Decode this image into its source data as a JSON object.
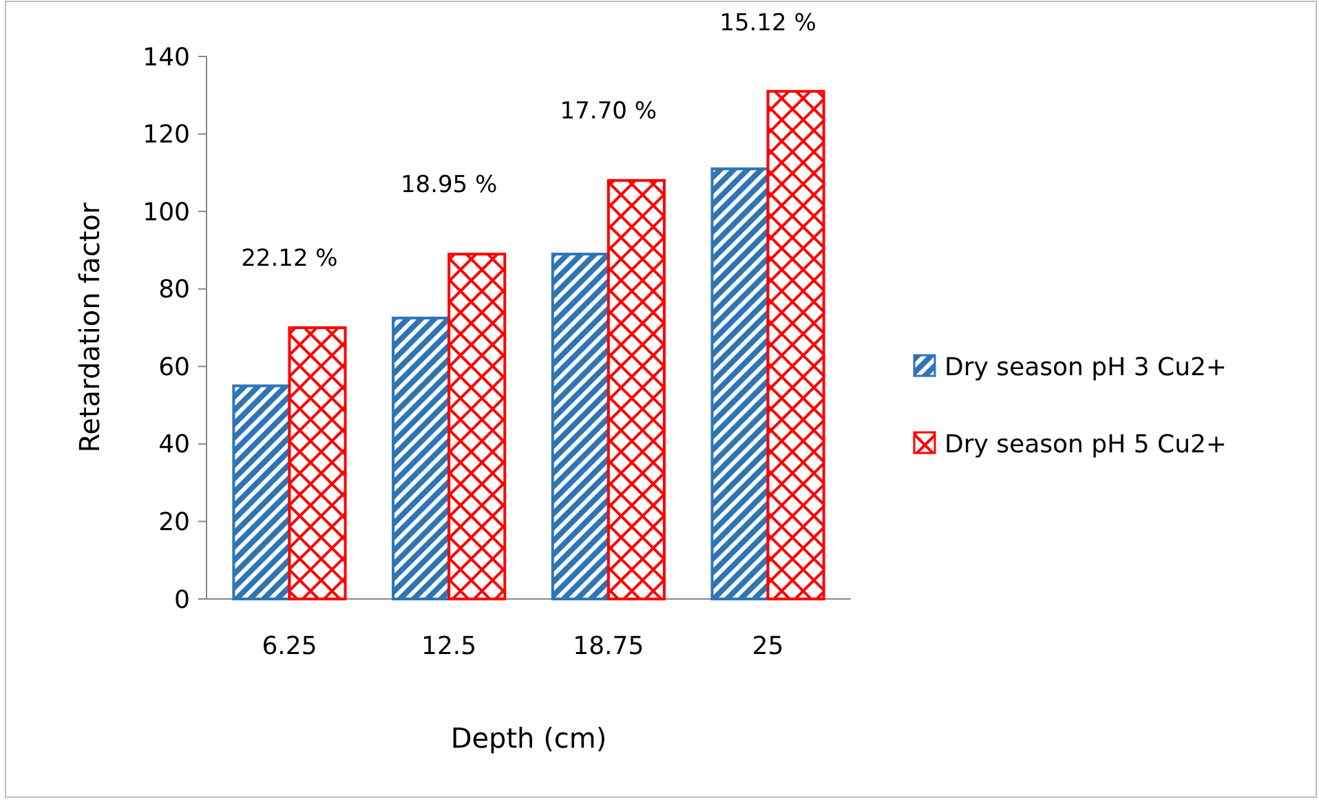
{
  "chart_data": {
    "type": "bar",
    "xlabel": "Depth (cm)",
    "ylabel": "Retardation factor",
    "categories": [
      "6.25",
      "12.5",
      "18.75",
      "25"
    ],
    "series": [
      {
        "name": "Dry season pH 3 Cu2+",
        "color": "#2e75b6",
        "values": [
          55,
          72.5,
          89,
          111
        ]
      },
      {
        "name": "Dry season pH 5 Cu2+",
        "color": "#ff0000",
        "values": [
          70,
          89,
          108,
          131
        ]
      }
    ],
    "ylim": [
      0,
      140
    ],
    "yticks": [
      0,
      20,
      40,
      60,
      80,
      100,
      120,
      140
    ],
    "grid": false,
    "legend": "right",
    "annotations": [
      "22.12 %",
      "18.95 %",
      "17.70 %",
      "15.12 %"
    ]
  }
}
